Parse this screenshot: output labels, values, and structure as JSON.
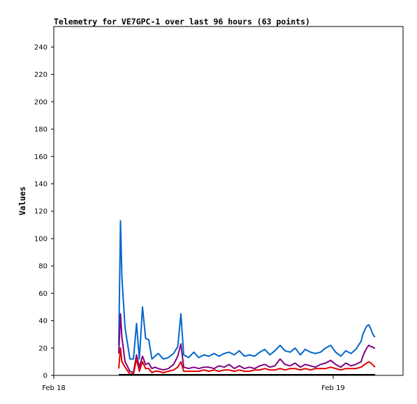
{
  "chart_data": {
    "type": "line",
    "title": "Telemetry for VE7GPC-1 over last 96 hours (63 points)",
    "xlabel": "",
    "ylabel": "Values",
    "xlim": [
      0,
      1
    ],
    "ylim": [
      0,
      255
    ],
    "yticks": [
      0,
      20,
      40,
      60,
      80,
      100,
      120,
      140,
      160,
      180,
      200,
      220,
      240
    ],
    "xticks": [
      {
        "label": "Feb 18",
        "pos": 0.0
      },
      {
        "label": "Feb 19",
        "pos": 0.8
      }
    ],
    "grid": false,
    "x": [
      0.186,
      0.191,
      0.195,
      0.204,
      0.218,
      0.228,
      0.237,
      0.245,
      0.254,
      0.263,
      0.272,
      0.281,
      0.29,
      0.299,
      0.314,
      0.328,
      0.343,
      0.355,
      0.364,
      0.372,
      0.386,
      0.401,
      0.415,
      0.43,
      0.444,
      0.459,
      0.473,
      0.488,
      0.502,
      0.517,
      0.531,
      0.546,
      0.56,
      0.575,
      0.59,
      0.604,
      0.619,
      0.633,
      0.648,
      0.662,
      0.677,
      0.691,
      0.706,
      0.72,
      0.735,
      0.749,
      0.764,
      0.778,
      0.793,
      0.807,
      0.822,
      0.836,
      0.851,
      0.865,
      0.88,
      0.885,
      0.89,
      0.896,
      0.902,
      0.908,
      0.912,
      0.916,
      0.92
    ],
    "series": [
      {
        "color": "#0066cc",
        "values": [
          22,
          113,
          72,
          35,
          12,
          12,
          38,
          12,
          50,
          27,
          26,
          12,
          14,
          16,
          12,
          13,
          16,
          21,
          45,
          15,
          13,
          17,
          13,
          15,
          14,
          16,
          14,
          16,
          17,
          15,
          18,
          14,
          15,
          14,
          17,
          19,
          15,
          18,
          22,
          18,
          17,
          20,
          15,
          19,
          17,
          16,
          17,
          20,
          22,
          17,
          14,
          18,
          16,
          19,
          25,
          30,
          33,
          36,
          37,
          34,
          31,
          29,
          28
        ]
      },
      {
        "color": "#800080",
        "values": [
          16,
          45,
          28,
          10,
          3,
          2,
          15,
          6,
          14,
          8,
          9,
          5,
          6,
          5,
          4,
          5,
          8,
          14,
          23,
          6,
          5,
          6,
          5,
          6,
          6,
          5,
          7,
          6,
          8,
          5,
          7,
          5,
          6,
          5,
          7,
          8,
          6,
          7,
          12,
          8,
          7,
          9,
          6,
          8,
          7,
          6,
          8,
          9,
          11,
          8,
          6,
          9,
          7,
          8,
          10,
          14,
          17,
          20,
          22,
          21,
          21,
          20,
          20
        ]
      },
      {
        "color": "#dd0000",
        "values": [
          5,
          20,
          10,
          6,
          1,
          1,
          12,
          3,
          10,
          5,
          5,
          2,
          3,
          3,
          2,
          3,
          4,
          6,
          10,
          3,
          3,
          3,
          3,
          4,
          3,
          4,
          3,
          4,
          4,
          3,
          4,
          3,
          3,
          4,
          4,
          5,
          4,
          4,
          5,
          4,
          5,
          5,
          4,
          5,
          4,
          5,
          5,
          5,
          6,
          5,
          4,
          5,
          5,
          5,
          6,
          7,
          8,
          9,
          10,
          9,
          8,
          7,
          6
        ]
      },
      {
        "color": "#000000",
        "values": [
          0.5,
          0.5,
          0.5,
          0.5,
          0.5,
          0.5,
          0.5,
          0.5,
          0.5,
          0.5,
          0.5,
          0.5,
          0.5,
          0.5,
          0.5,
          0.5,
          0.5,
          0.5,
          0.5,
          0.5,
          0.5,
          0.5,
          0.5,
          0.5,
          0.5,
          0.5,
          0.5,
          0.5,
          0.5,
          0.5,
          0.5,
          0.5,
          0.5,
          0.5,
          0.5,
          0.5,
          0.5,
          0.5,
          0.5,
          0.5,
          0.5,
          0.5,
          0.5,
          0.5,
          0.5,
          0.5,
          0.5,
          0.5,
          0.5,
          0.5,
          0.5,
          0.5,
          0.5,
          0.5,
          0.5,
          0.5,
          0.5,
          0.5,
          0.5,
          0.5,
          0.5,
          0.5,
          0.5
        ]
      }
    ]
  }
}
